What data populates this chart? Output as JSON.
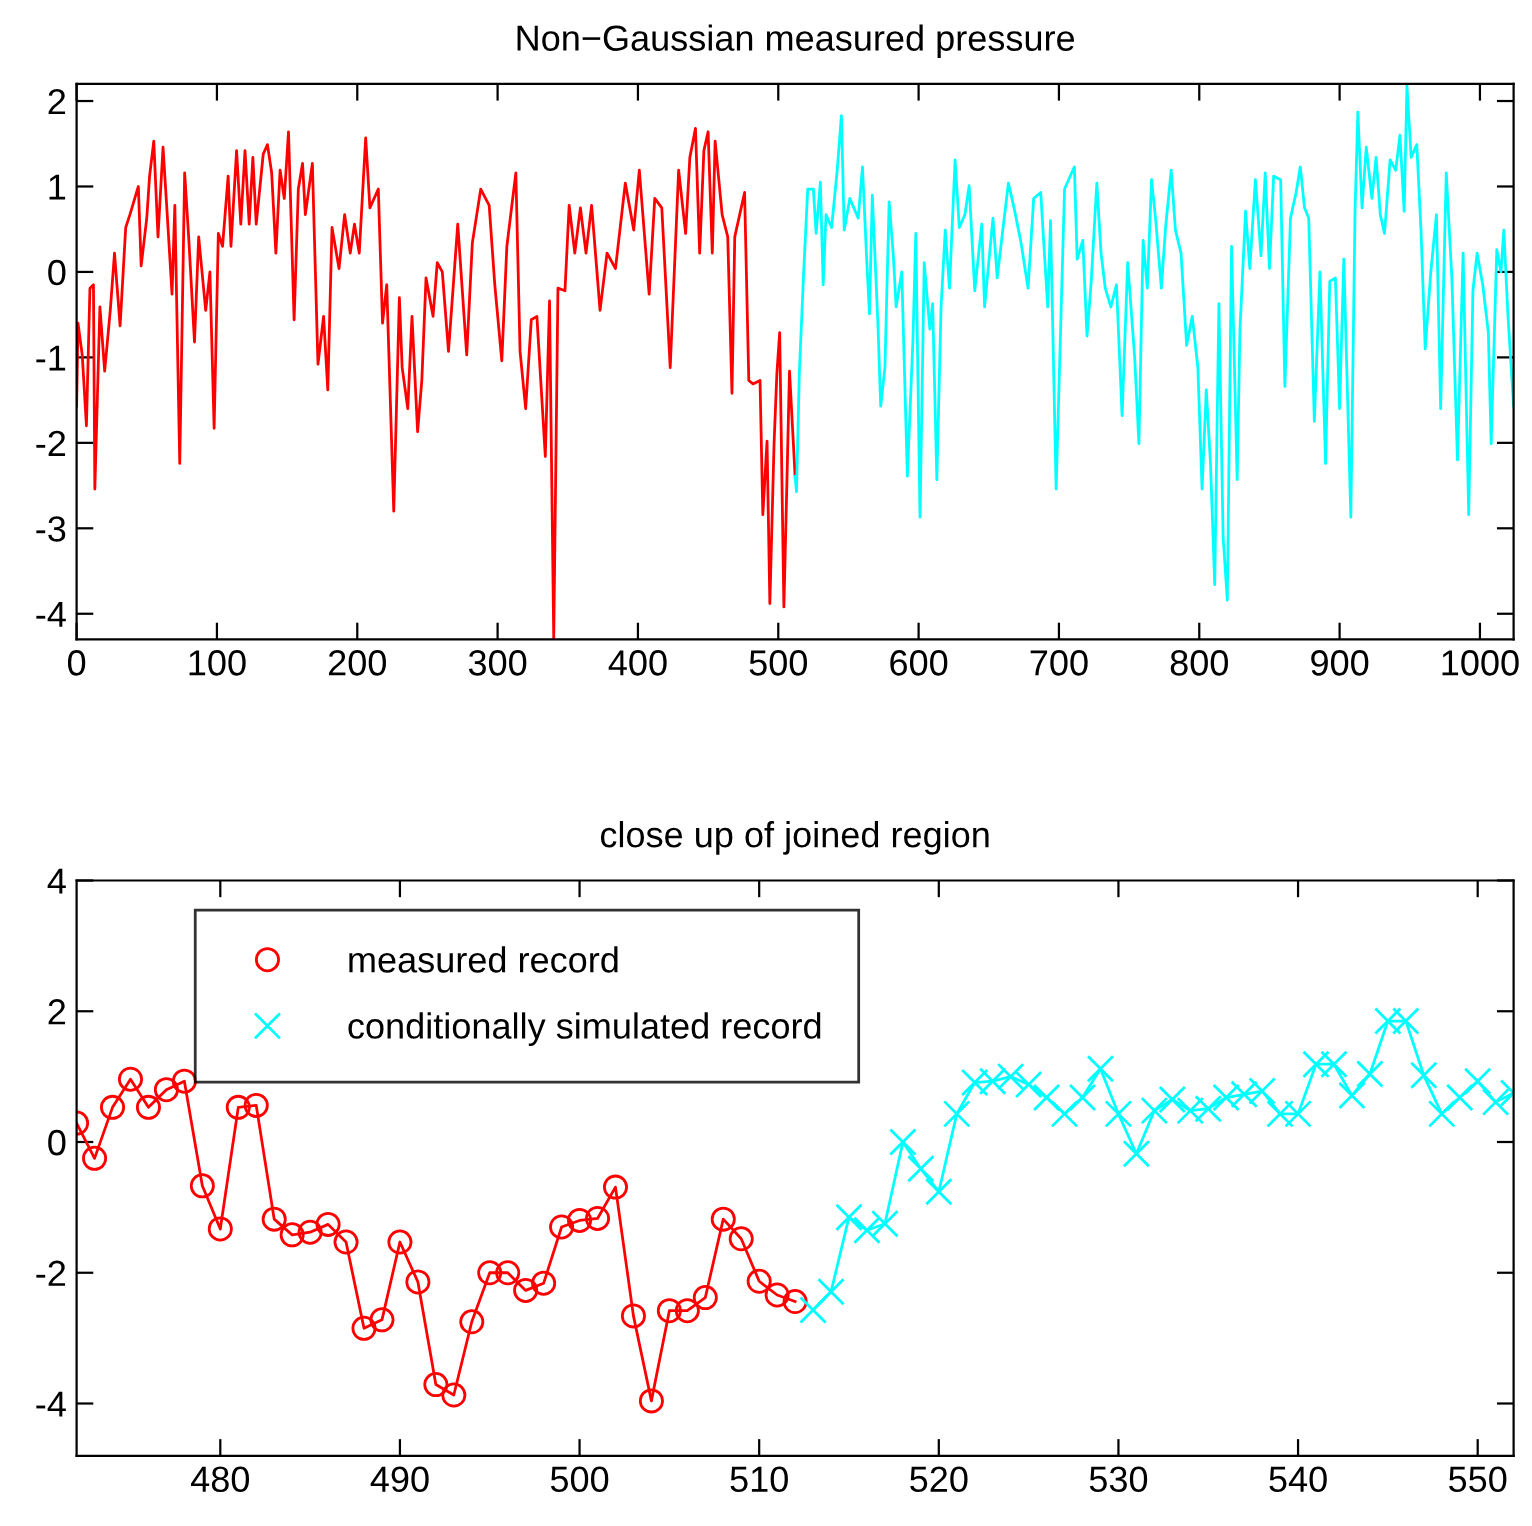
{
  "chart_data": [
    {
      "type": "line",
      "title": "Non−Gaussian measured pressure",
      "xlim": [
        0,
        1024
      ],
      "ylim": [
        -4.3,
        2.2
      ],
      "xticks": [
        0,
        100,
        200,
        300,
        400,
        500,
        600,
        700,
        800,
        900,
        1000
      ],
      "yticks": [
        -4,
        -3,
        -2,
        -1,
        0,
        1,
        2
      ],
      "grid": false,
      "legend": false,
      "series": [
        {
          "color": "#ff0000",
          "x": [
            0,
            1,
            4,
            7,
            9.5,
            12,
            13,
            16.6,
            20,
            24,
            27,
            31,
            35,
            38,
            44,
            46,
            50,
            52,
            55,
            58,
            61.6,
            65,
            68,
            70,
            73.5,
            77,
            80,
            84,
            87,
            92,
            95,
            98,
            101,
            104,
            108,
            110,
            114,
            117,
            120,
            123,
            125.6,
            128,
            133,
            136,
            139,
            142,
            145,
            148,
            151,
            155,
            158,
            161,
            163,
            168,
            172,
            176,
            179,
            182,
            187,
            191,
            195,
            198,
            201.4,
            206,
            209,
            215,
            218,
            221,
            226,
            230,
            232,
            236,
            239,
            243,
            246,
            249,
            254,
            257,
            260.6,
            265,
            271.6,
            278,
            282,
            288,
            294,
            298,
            303,
            306.6,
            313,
            316,
            320,
            324,
            328,
            334,
            337,
            340,
            343,
            348,
            351,
            355,
            359,
            363,
            367,
            373,
            378,
            384,
            391,
            397,
            401,
            408,
            412,
            417,
            423,
            429,
            434,
            437,
            441,
            444,
            447,
            450,
            453,
            455,
            460,
            464,
            467,
            469,
            476,
            479,
            482,
            487,
            489,
            492,
            494,
            497,
            499,
            501,
            504,
            506,
            508,
            512
          ],
          "values": [
            -1.57,
            -0.6,
            -0.97,
            -1.8,
            -0.19,
            -0.15,
            -2.54,
            -0.41,
            -1.16,
            -0.45,
            0.22,
            -0.63,
            0.52,
            0.67,
            1.0,
            0.07,
            0.63,
            1.12,
            1.53,
            0.41,
            1.46,
            0.56,
            -0.26,
            0.78,
            -2.24,
            1.16,
            0.37,
            -0.82,
            0.41,
            -0.45,
            0,
            -1.83,
            0.45,
            0.3,
            1.12,
            0.3,
            1.42,
            0.56,
            1.42,
            0.56,
            1.34,
            0.56,
            1.38,
            1.49,
            1.16,
            0.22,
            1.19,
            0.86,
            1.64,
            -0.56,
            0.97,
            1.27,
            0.67,
            1.27,
            -1.08,
            -0.52,
            -1.38,
            0.52,
            0.04,
            0.67,
            0.22,
            0.56,
            0.22,
            1.57,
            0.75,
            0.97,
            -0.6,
            -0.15,
            -2.8,
            -0.3,
            -1.12,
            -1.6,
            -0.52,
            -1.87,
            -1.27,
            -0.07,
            -0.52,
            0.11,
            0,
            -0.93,
            0.56,
            -0.97,
            0.34,
            0.97,
            0.78,
            -0.15,
            -1.04,
            0.3,
            1.16,
            -0.93,
            -1.6,
            -0.56,
            -0.52,
            -2.16,
            -0.34,
            -4.29,
            -0.19,
            -0.22,
            0.78,
            0.22,
            0.75,
            0.22,
            0.78,
            -0.45,
            0.22,
            0.04,
            1.04,
            0.49,
            1.19,
            -0.26,
            0.86,
            0.75,
            -1.12,
            1.19,
            0.45,
            1.34,
            1.68,
            0.22,
            1.42,
            1.64,
            0.22,
            1.53,
            0.67,
            0.41,
            -1.42,
            0.41,
            0.93,
            -1.27,
            -1.31,
            -1.27,
            -2.84,
            -1.98,
            -3.88,
            -2.01,
            -1.19,
            -0.71,
            -3.92,
            -2.57,
            -1.16,
            -2.39
          ]
        },
        {
          "color": "#00ffff",
          "x": [
            512,
            513,
            515,
            518,
            521,
            525,
            527,
            530,
            532,
            534,
            538,
            542,
            545,
            547,
            551,
            557,
            560,
            563,
            565,
            567,
            571,
            573,
            576,
            579,
            582,
            584,
            588,
            592,
            596,
            598,
            601,
            604,
            608,
            610,
            613,
            616,
            619,
            622,
            626,
            629,
            633,
            636,
            640,
            645,
            647,
            653,
            656,
            661,
            664,
            668,
            673,
            678,
            682,
            687,
            692,
            694,
            698,
            704,
            708,
            711,
            713,
            717,
            720,
            723,
            727,
            730,
            733,
            737,
            741,
            745,
            749,
            754,
            757,
            760,
            763,
            766,
            769,
            773,
            776,
            780,
            783,
            787,
            791,
            795,
            799,
            802,
            805,
            808,
            811,
            814,
            817,
            820,
            823,
            827,
            829,
            833,
            836,
            840,
            844,
            847,
            850,
            853,
            858,
            861,
            865,
            869,
            872,
            875,
            878,
            882,
            886,
            890,
            893,
            897,
            900,
            903,
            908,
            911,
            913,
            916,
            919,
            923,
            926,
            929,
            932,
            936,
            940,
            943,
            946,
            948,
            951,
            955,
            958,
            961,
            965,
            969,
            972,
            976,
            980,
            984,
            988,
            992,
            995,
            998,
            1002,
            1006,
            1008,
            1012,
            1015,
            1017,
            1020,
            1024
          ],
          "values": [
            -2.39,
            -2.57,
            -1.19,
            -0.04,
            0.97,
            0.97,
            0.45,
            1.05,
            -0.15,
            0.67,
            0.52,
            1.19,
            1.83,
            0.49,
            0.86,
            0.63,
            1.23,
            0.15,
            -0.49,
            0.9,
            -0.6,
            -1.57,
            -1.12,
            0.82,
            0.19,
            -0.41,
            0,
            -2.39,
            -0.78,
            0.45,
            -2.87,
            0.11,
            -0.67,
            -0.37,
            -2.43,
            -0.41,
            0.49,
            -0.19,
            1.31,
            0.52,
            0.67,
            1.01,
            -0.22,
            0.56,
            -0.41,
            0.63,
            -0.07,
            0.63,
            1.04,
            0.75,
            0.34,
            -0.19,
            0.86,
            0.93,
            -0.41,
            0.6,
            -2.54,
            0.97,
            1.12,
            1.23,
            0.15,
            0.37,
            -0.75,
            -0.11,
            1.04,
            0.22,
            -0.19,
            -0.41,
            -0.15,
            -1.68,
            0.11,
            -1.01,
            -2.01,
            0.37,
            -0.19,
            1.08,
            0.6,
            -0.19,
            0.52,
            1.19,
            0.49,
            0.22,
            -0.86,
            -0.52,
            -1.12,
            -2.54,
            -1.38,
            -2.24,
            -3.66,
            -0.37,
            -3.1,
            -3.84,
            0.3,
            -2.43,
            -0.67,
            0.71,
            0.04,
            1.08,
            0.19,
            1.16,
            0.04,
            1.12,
            1.08,
            -1.34,
            0.63,
            0.93,
            1.23,
            0.75,
            0.63,
            -1.75,
            0,
            -2.24,
            -0.11,
            -0.07,
            -1.6,
            0.15,
            -2.87,
            0.71,
            1.87,
            0.75,
            1.46,
            0.86,
            1.34,
            0.67,
            0.45,
            1.31,
            1.19,
            1.6,
            0.71,
            2.18,
            1.34,
            1.49,
            0.49,
            -0.9,
            0,
            0.67,
            -1.6,
            1.16,
            -0.07,
            -2.2,
            0.22,
            -2.84,
            -0.22,
            0.22,
            -0.15,
            -0.71,
            -2.01,
            0.26,
            0,
            0.49,
            -0.52,
            -1.57
          ]
        }
      ]
    },
    {
      "type": "line",
      "title": "close up of joined region",
      "xlim": [
        472,
        552
      ],
      "ylim": [
        -4.8,
        4
      ],
      "xticks": [
        480,
        490,
        500,
        510,
        520,
        530,
        540,
        550
      ],
      "yticks": [
        -4,
        -2,
        0,
        2,
        4
      ],
      "grid": false,
      "legend": "top left",
      "series": [
        {
          "name": "measured record",
          "color": "#ff0000",
          "marker": "circle",
          "x": [
            472,
            473,
            474,
            475,
            476,
            477,
            478,
            479,
            480,
            481,
            482,
            483,
            484,
            485,
            486,
            487,
            488,
            489,
            490,
            491,
            492,
            493,
            494,
            495,
            496,
            497,
            498,
            499,
            500,
            501,
            502,
            503,
            504,
            505,
            506,
            507,
            508,
            509,
            510,
            511,
            512
          ],
          "values": [
            0.29,
            -0.25,
            0.53,
            0.96,
            0.53,
            0.8,
            0.93,
            -0.67,
            -1.33,
            0.53,
            0.56,
            -1.18,
            -1.42,
            -1.38,
            -1.26,
            -1.53,
            -2.85,
            -2.72,
            -1.53,
            -2.14,
            -3.71,
            -3.87,
            -2.75,
            -2.0,
            -2.0,
            -2.27,
            -2.16,
            -1.3,
            -1.2,
            -1.17,
            -0.69,
            -2.66,
            -3.96,
            -2.58,
            -2.58,
            -2.38,
            -1.18,
            -1.48,
            -2.13,
            -2.34,
            -2.44
          ]
        },
        {
          "name": "conditionally simulated record",
          "color": "#00ffff",
          "marker": "cross",
          "x": [
            513,
            514,
            515,
            516,
            517,
            518,
            519,
            520,
            521,
            522,
            523,
            524,
            525,
            526,
            527,
            528,
            529,
            530,
            531,
            532,
            533,
            534,
            535,
            536,
            537,
            538,
            539,
            540,
            541,
            542,
            543,
            544,
            545,
            546,
            547,
            548,
            549,
            550,
            551,
            552
          ],
          "values": [
            -2.57,
            -2.29,
            -1.15,
            -1.35,
            -1.25,
            0.0,
            -0.41,
            -0.76,
            0.43,
            0.91,
            0.93,
            1.0,
            0.88,
            0.68,
            0.43,
            0.68,
            1.12,
            0.43,
            -0.18,
            0.48,
            0.65,
            0.48,
            0.51,
            0.68,
            0.73,
            0.78,
            0.43,
            0.43,
            1.19,
            1.19,
            0.71,
            1.04,
            1.85,
            1.85,
            1.02,
            0.43,
            0.68,
            0.93,
            0.61,
            0.75
          ]
        }
      ]
    }
  ]
}
